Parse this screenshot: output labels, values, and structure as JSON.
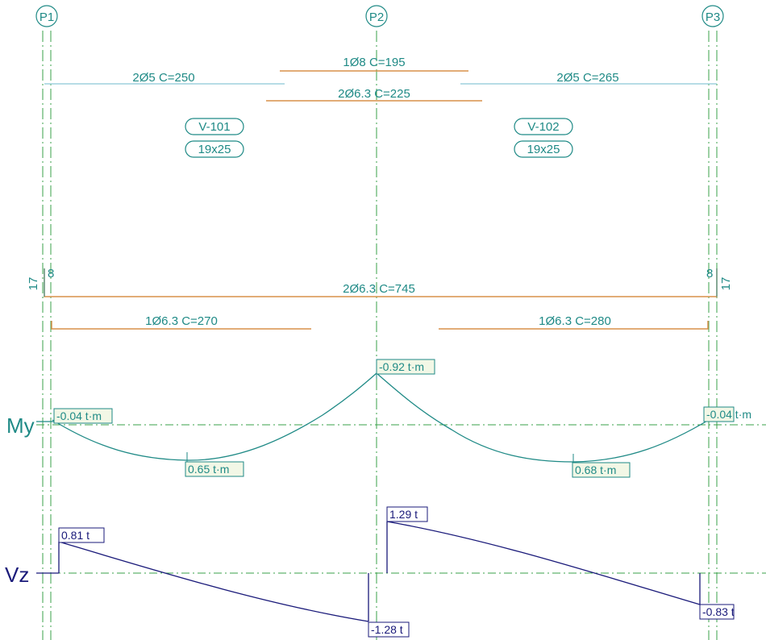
{
  "supports": [
    {
      "label": "P1"
    },
    {
      "label": "P2"
    },
    {
      "label": "P3"
    }
  ],
  "top_bars": [
    {
      "label": "1Ø8  C=195"
    },
    {
      "label": "2Ø5  C=250"
    },
    {
      "label": "2Ø6.3  C=225"
    },
    {
      "label": "2Ø5  C=265"
    }
  ],
  "beams": [
    {
      "name": "V-101",
      "section": "19x25"
    },
    {
      "name": "V-102",
      "section": "19x25"
    }
  ],
  "bottom_bars": [
    {
      "label": "2Ø6.3  C=745",
      "hook_left": "8",
      "hook_right": "8",
      "side_left": "17",
      "side_right": "17"
    },
    {
      "label": "1Ø6.3  C=270"
    },
    {
      "label": "1Ø6.3  C=280"
    }
  ],
  "moment": {
    "axis_label": "My",
    "values": [
      {
        "label": "-0.04 t·m"
      },
      {
        "label": "0.65 t·m"
      },
      {
        "label": "-0.92 t·m"
      },
      {
        "label": "0.68 t·m"
      },
      {
        "label": "-0.04 t·m"
      }
    ]
  },
  "shear": {
    "axis_label": "Vz",
    "values": [
      {
        "label": "0.81 t"
      },
      {
        "label": "-1.28 t"
      },
      {
        "label": "1.29 t"
      },
      {
        "label": "-0.83 t"
      }
    ]
  },
  "colors": {
    "teal": "#1f8a86",
    "orange": "#d9904a",
    "axis_green": "#3aa04a",
    "light_blue": "#8cc8d8",
    "navy": "#1a1a7a",
    "label_fill": "#f2f7e6"
  }
}
